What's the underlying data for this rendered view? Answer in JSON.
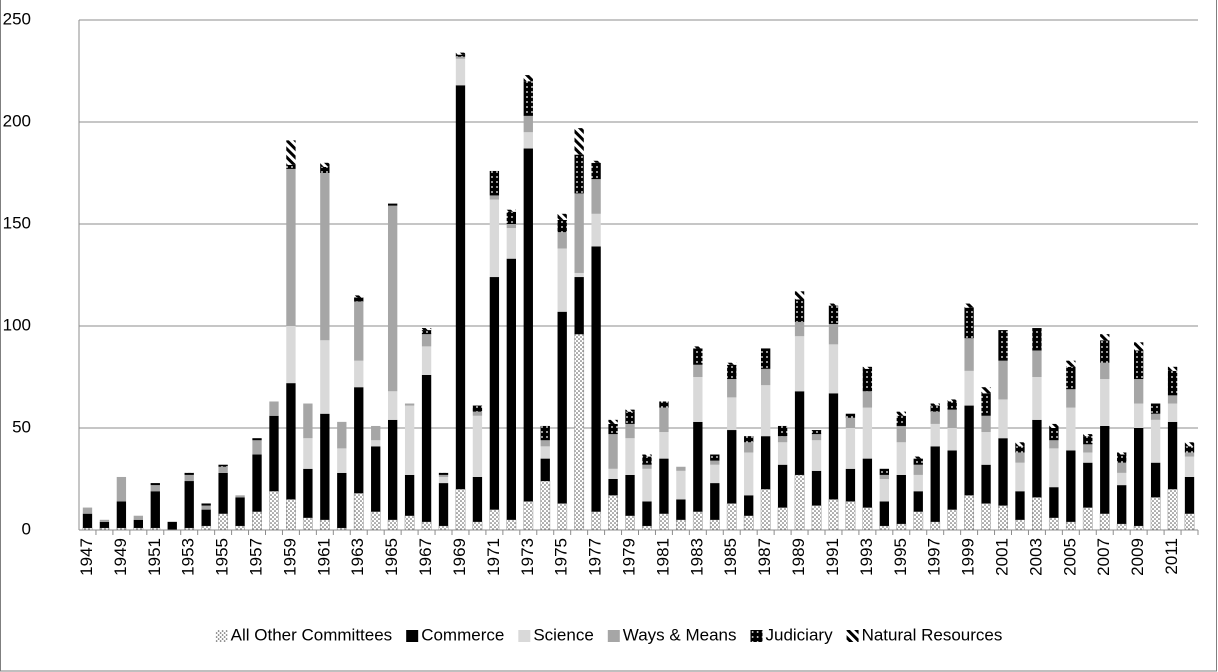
{
  "chart_data": {
    "type": "stacked_bar",
    "categories": [
      "1947",
      null,
      "1949",
      null,
      "1951",
      null,
      "1953",
      null,
      "1955",
      null,
      "1957",
      null,
      "1959",
      null,
      "1961",
      null,
      "1963",
      null,
      "1965",
      null,
      "1967",
      null,
      "1969",
      null,
      "1971",
      null,
      "1973",
      null,
      "1975",
      null,
      "1977",
      null,
      "1979",
      null,
      "1981",
      null,
      "1983",
      null,
      "1985",
      null,
      "1987",
      null,
      "1989",
      null,
      "1991",
      null,
      "1993",
      null,
      "1995",
      null,
      "1997",
      null,
      "1999",
      null,
      "2001",
      null,
      "2003",
      null,
      "2005",
      null,
      "2007",
      null,
      "2009",
      null,
      "2011",
      null
    ],
    "series": [
      {
        "name": "All Other Committees",
        "color": "#ffffff",
        "pattern": "dots",
        "values": [
          1,
          1,
          1,
          1,
          1,
          0,
          1,
          2,
          8,
          2,
          9,
          19,
          15,
          6,
          5,
          1,
          18,
          9,
          5,
          7,
          4,
          2,
          20,
          4,
          10,
          5,
          14,
          24,
          13,
          96,
          9,
          17,
          7,
          2,
          8,
          5,
          9,
          5,
          13,
          7,
          20,
          11,
          27,
          12,
          15,
          14,
          11,
          2,
          3,
          9,
          4,
          10,
          17,
          13,
          12,
          5,
          16,
          6,
          4,
          11,
          8,
          3,
          2,
          16,
          20,
          8
        ]
      },
      {
        "name": "Commerce",
        "color": "#000000",
        "pattern": "solid",
        "values": [
          7,
          3,
          13,
          4,
          18,
          4,
          23,
          8,
          20,
          14,
          28,
          37,
          57,
          24,
          52,
          27,
          52,
          32,
          49,
          20,
          72,
          21,
          198,
          22,
          114,
          128,
          173,
          11,
          94,
          28,
          130,
          8,
          20,
          12,
          27,
          10,
          44,
          18,
          36,
          10,
          26,
          21,
          41,
          17,
          52,
          16,
          24,
          12,
          24,
          10,
          37,
          29,
          44,
          19,
          33,
          14,
          38,
          15,
          35,
          22,
          43,
          19,
          48,
          17,
          33,
          18
        ]
      },
      {
        "name": "Science",
        "color": "#d9d9d9",
        "pattern": "solid",
        "values": [
          0,
          0,
          0,
          0,
          0,
          0,
          0,
          0,
          0,
          0,
          0,
          0,
          28,
          15,
          36,
          12,
          13,
          3,
          14,
          34,
          14,
          3,
          13,
          30,
          38,
          15,
          8,
          6,
          31,
          2,
          16,
          5,
          18,
          16,
          13,
          14,
          22,
          9,
          16,
          21,
          25,
          11,
          27,
          15,
          24,
          20,
          25,
          11,
          16,
          8,
          11,
          11,
          17,
          16,
          19,
          14,
          21,
          19,
          21,
          5,
          23,
          6,
          12,
          21,
          9,
          10
        ]
      },
      {
        "name": "Ways & Means",
        "color": "#a6a6a6",
        "pattern": "solid",
        "values": [
          3,
          1,
          12,
          2,
          3,
          0,
          3,
          2,
          3,
          1,
          7,
          7,
          77,
          17,
          82,
          13,
          29,
          7,
          91,
          1,
          6,
          1,
          1,
          2,
          2,
          2,
          8,
          3,
          8,
          39,
          17,
          17,
          7,
          2,
          12,
          2,
          6,
          2,
          9,
          5,
          8,
          3,
          7,
          3,
          10,
          5,
          8,
          2,
          8,
          5,
          6,
          9,
          16,
          8,
          19,
          5,
          13,
          4,
          9,
          4,
          8,
          5,
          12,
          3,
          4,
          2
        ]
      },
      {
        "name": "Judiciary",
        "color": "#000000",
        "pattern": "white-dots",
        "values": [
          0,
          0,
          0,
          0,
          1,
          0,
          1,
          1,
          1,
          0,
          1,
          0,
          2,
          0,
          3,
          0,
          2,
          0,
          1,
          0,
          2,
          1,
          1,
          3,
          12,
          6,
          17,
          7,
          6,
          19,
          8,
          5,
          6,
          4,
          3,
          0,
          8,
          3,
          7,
          3,
          10,
          5,
          11,
          2,
          9,
          2,
          11,
          3,
          5,
          3,
          3,
          4,
          15,
          11,
          15,
          3,
          11,
          6,
          11,
          4,
          11,
          4,
          14,
          5,
          12,
          3
        ]
      },
      {
        "name": "Natural Resources",
        "color": "#000000",
        "pattern": "stripes",
        "values": [
          0,
          0,
          0,
          0,
          0,
          0,
          0,
          0,
          0,
          0,
          0,
          0,
          12,
          0,
          2,
          0,
          1,
          0,
          0,
          0,
          1,
          0,
          1,
          0,
          0,
          1,
          3,
          0,
          3,
          13,
          1,
          2,
          1,
          1,
          0,
          0,
          1,
          0,
          1,
          0,
          0,
          0,
          4,
          0,
          1,
          0,
          1,
          0,
          2,
          1,
          1,
          1,
          2,
          3,
          0,
          2,
          0,
          2,
          3,
          1,
          3,
          1,
          4,
          0,
          2,
          2
        ]
      }
    ],
    "ylim": [
      0,
      250
    ],
    "yticks": [
      0,
      50,
      100,
      150,
      200,
      250
    ],
    "grid": true,
    "legend": "bottom"
  }
}
